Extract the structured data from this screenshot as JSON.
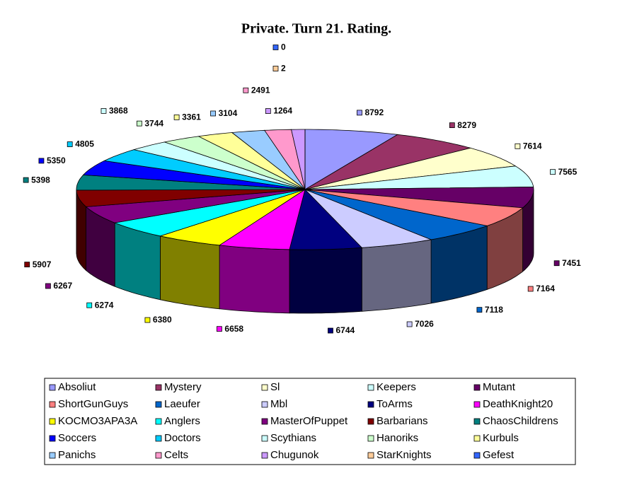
{
  "chart_data": {
    "type": "pie3d",
    "title": "Private. Turn 21. Rating.",
    "categories": [
      "Absoliut",
      "Mystery",
      "Sl",
      "Keepers",
      "Mutant",
      "ShortGunGuys",
      "Laeufer",
      "Mbl",
      "ToArms",
      "DeathKnight20",
      "KOCMO3APA3A",
      "Anglers",
      "MasterOfPuppet",
      "Barbarians",
      "ChaosChildrens",
      "Soccers",
      "Doctors",
      "Scythians",
      "Hanoriks",
      "Kurbuls",
      "Panichs",
      "Celts",
      "Chugunok",
      "StarKnights",
      "Gefest"
    ],
    "values": [
      8792,
      8279,
      7614,
      7565,
      7451,
      7164,
      7118,
      7026,
      6744,
      6658,
      6380,
      6274,
      6267,
      5907,
      5398,
      5350,
      4805,
      3868,
      3744,
      3361,
      3104,
      2491,
      1264,
      2,
      0
    ],
    "colors": [
      "#9999ff",
      "#993366",
      "#ffffcc",
      "#ccffff",
      "#660066",
      "#ff8080",
      "#0066cc",
      "#ccccff",
      "#000080",
      "#ff00ff",
      "#ffff00",
      "#00ffff",
      "#800080",
      "#800000",
      "#008080",
      "#0000ff",
      "#00ccff",
      "#ccffff",
      "#ccffcc",
      "#ffff99",
      "#99ccff",
      "#ff99cc",
      "#cc99ff",
      "#ffcc99",
      "#3366ff"
    ],
    "legend": "bottom"
  }
}
